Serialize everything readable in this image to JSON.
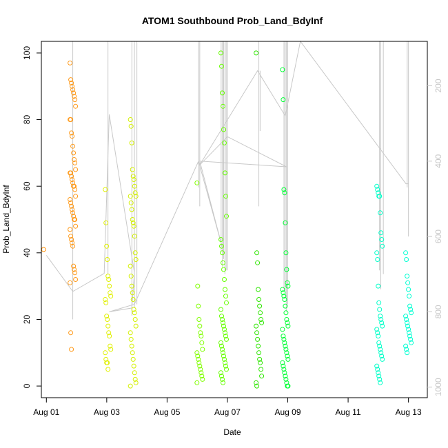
{
  "chart_data": {
    "type": "scatter",
    "title": "ATOM1 Southbound Prob_Land_BdyInf",
    "xlabel": "Date",
    "ylabel": "Prob_Land_BdyInf",
    "x_unit": "date",
    "xlim": [
      "2016-07-31T20:00",
      "2016-08-13T15:00"
    ],
    "ylim": [
      -3.5,
      103.5
    ],
    "x_ticks": [
      "Aug 01",
      "Aug 03",
      "Aug 05",
      "Aug 07",
      "Aug 09",
      "Aug 11",
      "Aug 13"
    ],
    "x_tick_dates": [
      "2016-08-01T00:00",
      "2016-08-03T00:00",
      "2016-08-05T00:00",
      "2016-08-07T00:00",
      "2016-08-09T00:00",
      "2016-08-11T00:00",
      "2016-08-13T00:00"
    ],
    "y_ticks": [
      0,
      20,
      40,
      60,
      80,
      100
    ],
    "secondary_axis": {
      "position": "right",
      "color": "#c8c8c8",
      "reversed": true,
      "ticks": [
        200,
        400,
        600,
        800,
        1000
      ],
      "lim": [
        1028,
        82
      ]
    },
    "marker": "open-circle",
    "grid": false,
    "legend": "none",
    "point_groups": [
      {
        "date": "2016-08-01T00:00",
        "color": "#ff8c00",
        "values": [
          41
        ]
      },
      {
        "date": "2016-08-01T21:00",
        "color": "#ff9a1a",
        "values": [
          97,
          92,
          91,
          90,
          89,
          88,
          87,
          86,
          84,
          80,
          80,
          76,
          75,
          72,
          70,
          68,
          67,
          65,
          64,
          64,
          63,
          62,
          61,
          60,
          60,
          59,
          57,
          56,
          55,
          54,
          53,
          52,
          51,
          50,
          50,
          48,
          47,
          45,
          44,
          43,
          42,
          36,
          35,
          34,
          32,
          31,
          16,
          11
        ]
      },
      {
        "date": "2016-08-03T01:00",
        "color": "#e0f000",
        "values": [
          59,
          49,
          42,
          38,
          33,
          32,
          30,
          28,
          27,
          26,
          25,
          21,
          20,
          18,
          16,
          15,
          12,
          11,
          10,
          8,
          7,
          7,
          5
        ]
      },
      {
        "date": "2016-08-03T21:00",
        "color": "#d4f000",
        "values": [
          80,
          78,
          73,
          65,
          63,
          62,
          60,
          58,
          57,
          57,
          55,
          53,
          50,
          49,
          48,
          45,
          40,
          38,
          36,
          33,
          30,
          28,
          26,
          23,
          22,
          20,
          18,
          16,
          14,
          12,
          10,
          8,
          6,
          4,
          2,
          1,
          0
        ]
      },
      {
        "date": "2016-08-06T02:00",
        "color": "#80ff00",
        "values": [
          61,
          30,
          24,
          20,
          18,
          16,
          15,
          13,
          11,
          10,
          9,
          8,
          7,
          6,
          5,
          4,
          3,
          2,
          1
        ]
      },
      {
        "date": "2016-08-06T21:00",
        "color": "#66ff00",
        "values": [
          100,
          96,
          88,
          84,
          77,
          73,
          64,
          57,
          51,
          44,
          42,
          40,
          37,
          35,
          32,
          29,
          27,
          25,
          23,
          21,
          20,
          19,
          18,
          17,
          16,
          15,
          14,
          13,
          12,
          11,
          10,
          9,
          8,
          7,
          6,
          5,
          4,
          3,
          2,
          1
        ]
      },
      {
        "date": "2016-08-08T01:00",
        "color": "#2ee600",
        "values": [
          100,
          40,
          37,
          29,
          26,
          24,
          22,
          20,
          19,
          18,
          16,
          14,
          12,
          10,
          8,
          7,
          5,
          3,
          1,
          0
        ]
      },
      {
        "date": "2016-08-08T22:00",
        "color": "#00ff33",
        "values": [
          95,
          86,
          59,
          58,
          49,
          40,
          35,
          31,
          30,
          29,
          28,
          27,
          26,
          24,
          22,
          20,
          19,
          18,
          17,
          15,
          14,
          13,
          12,
          11,
          10,
          9,
          8,
          7,
          6,
          5,
          4,
          3,
          2,
          1,
          0,
          0
        ]
      },
      {
        "date": "2016-08-12T01:00",
        "color": "#00ffc8",
        "values": [
          60,
          59,
          58,
          57,
          57,
          52,
          46,
          44,
          42,
          40,
          38,
          30,
          25,
          23,
          21,
          20,
          19,
          18,
          17,
          16,
          15,
          13,
          12,
          11,
          10,
          9,
          8,
          6,
          5,
          4,
          3,
          2,
          1
        ]
      },
      {
        "date": "2016-08-13T00:00",
        "color": "#00ffd2",
        "values": [
          40,
          38,
          33,
          31,
          29,
          27,
          24,
          23,
          22,
          21,
          20,
          19,
          18,
          17,
          16,
          15,
          14,
          13,
          12,
          11,
          10
        ]
      }
    ],
    "secondary_series": {
      "color": "#c8c8c8",
      "path": [
        [
          "2016-08-01T00:00",
          650
        ],
        [
          "2016-08-01T21:00",
          746
        ],
        [
          "2016-08-02T22:00",
          698
        ],
        [
          "2016-08-03T02:00",
          276
        ],
        [
          "2016-08-03T22:00",
          696
        ],
        [
          "2016-08-03T20:00",
          790
        ],
        [
          "2016-08-03T02:00",
          800
        ],
        [
          "2016-08-03T22:00",
          780
        ],
        [
          "2016-08-06T01:00",
          400
        ],
        [
          "2016-08-06T20:00",
          630
        ],
        [
          "2016-08-06T02:00",
          400
        ],
        [
          "2016-08-08T23:00",
          415
        ],
        [
          "2016-08-07T00:00",
          335
        ],
        [
          "2016-08-06T02:00",
          410
        ],
        [
          "2016-08-08T00:00",
          160
        ],
        [
          "2016-08-08T22:00",
          280
        ],
        [
          "2016-08-09T10:00",
          82
        ],
        [
          "2016-08-12T22:00",
          460
        ],
        [
          "2016-08-13T00:00",
          460
        ]
      ],
      "spikes": [
        {
          "date": "2016-08-01T21:00",
          "from": 82,
          "to": 820
        },
        {
          "date": "2016-08-03T01:00",
          "from": 82,
          "to": 700
        },
        {
          "date": "2016-08-03T20:00",
          "from": 82,
          "to": 810
        },
        {
          "date": "2016-08-03T22:00",
          "from": 82,
          "to": 790
        },
        {
          "date": "2016-08-04T00:00",
          "from": 82,
          "to": 780
        },
        {
          "date": "2016-08-06T01:00",
          "from": 82,
          "to": 470
        },
        {
          "date": "2016-08-06T02:00",
          "from": 82,
          "to": 520
        },
        {
          "date": "2016-08-06T19:00",
          "from": 82,
          "to": 640
        },
        {
          "date": "2016-08-06T20:00",
          "from": 82,
          "to": 680
        },
        {
          "date": "2016-08-06T21:00",
          "from": 82,
          "to": 660
        },
        {
          "date": "2016-08-06T22:00",
          "from": 82,
          "to": 700
        },
        {
          "date": "2016-08-06T23:00",
          "from": 82,
          "to": 690
        },
        {
          "date": "2016-08-07T00:00",
          "from": 82,
          "to": 690
        },
        {
          "date": "2016-08-08T01:00",
          "from": 82,
          "to": 520
        },
        {
          "date": "2016-08-08T02:00",
          "from": 160,
          "to": 320
        },
        {
          "date": "2016-08-08T21:00",
          "from": 82,
          "to": 740
        },
        {
          "date": "2016-08-08T22:00",
          "from": 82,
          "to": 760
        },
        {
          "date": "2016-08-08T23:00",
          "from": 82,
          "to": 800
        },
        {
          "date": "2016-08-09T00:00",
          "from": 82,
          "to": 780
        },
        {
          "date": "2016-08-12T01:00",
          "from": 82,
          "to": 690
        },
        {
          "date": "2016-08-12T02:00",
          "from": 82,
          "to": 740
        },
        {
          "date": "2016-08-12T04:00",
          "from": 82,
          "to": 700
        },
        {
          "date": "2016-08-12T23:00",
          "from": 82,
          "to": 470
        },
        {
          "date": "2016-08-13T00:00",
          "from": 82,
          "to": 600
        }
      ]
    }
  }
}
